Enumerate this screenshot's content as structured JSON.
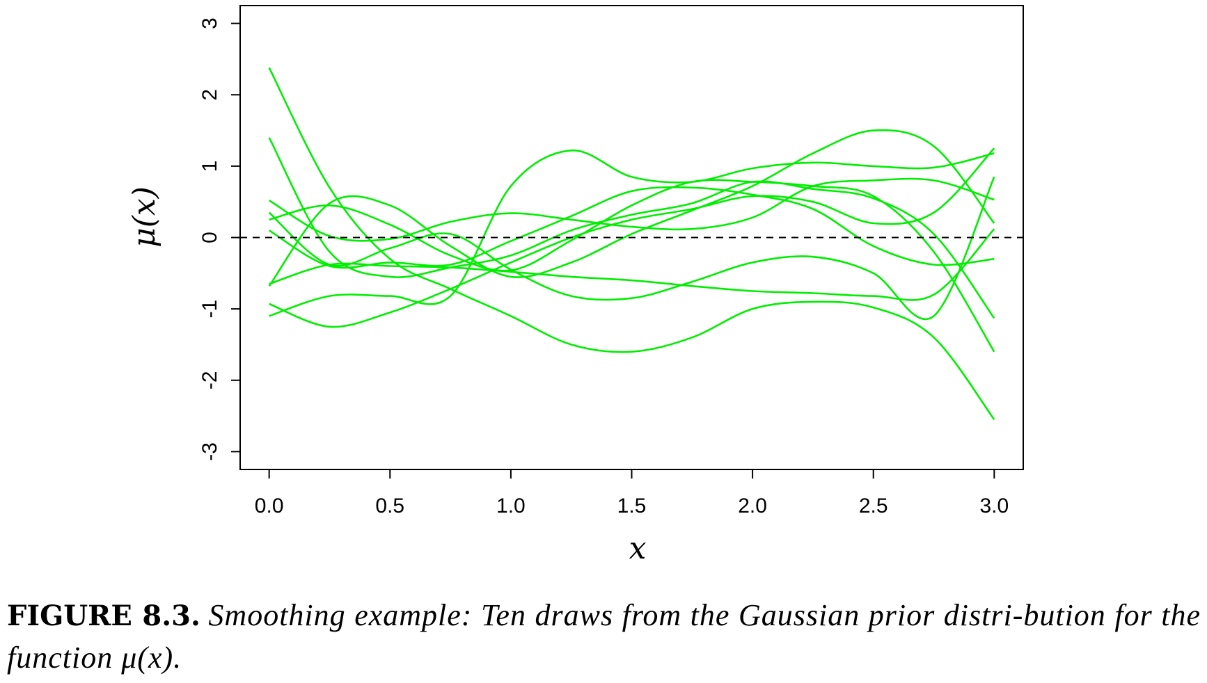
{
  "chart_data": {
    "type": "line",
    "xlabel": "x",
    "ylabel": "μ(x)",
    "xlim": [
      -0.12,
      3.12
    ],
    "ylim": [
      -3.25,
      3.25
    ],
    "x_ticks": [
      "0.0",
      "0.5",
      "1.0",
      "1.5",
      "2.0",
      "2.5",
      "3.0"
    ],
    "x_tick_values": [
      0,
      0.5,
      1,
      1.5,
      2,
      2.5,
      3
    ],
    "y_ticks": [
      "-3",
      "-2",
      "-1",
      "0",
      "1",
      "2",
      "3"
    ],
    "y_tick_values": [
      -3,
      -2,
      -1,
      0,
      1,
      2,
      3
    ],
    "reference_line": {
      "y": 0,
      "style": "dashed",
      "color": "#000000"
    },
    "line_color": "#00ee00",
    "x": [
      0,
      0.25,
      0.5,
      0.75,
      1.0,
      1.25,
      1.5,
      1.75,
      2.0,
      2.25,
      2.5,
      2.75,
      3.0
    ],
    "series": [
      {
        "values": [
          2.38,
          0.7,
          -0.3,
          -0.72,
          -1.1,
          -1.5,
          -1.6,
          -1.4,
          -1.0,
          -0.9,
          -0.98,
          -1.4,
          -2.55
        ]
      },
      {
        "values": [
          1.4,
          -0.2,
          -0.55,
          -0.42,
          -0.25,
          0.1,
          0.32,
          0.48,
          0.78,
          0.68,
          0.55,
          0.05,
          -1.13
        ]
      },
      {
        "values": [
          0.52,
          0.02,
          -0.02,
          0.22,
          0.34,
          0.25,
          0.15,
          0.12,
          0.28,
          0.72,
          0.8,
          0.8,
          0.53
        ]
      },
      {
        "values": [
          0.35,
          -0.38,
          -0.15,
          0.05,
          -0.45,
          -0.82,
          -0.85,
          -0.62,
          -0.35,
          -0.27,
          -0.5,
          -1.1,
          0.85
        ]
      },
      {
        "values": [
          0.25,
          0.45,
          0.18,
          -0.25,
          -0.46,
          -0.04,
          0.45,
          0.78,
          0.78,
          0.72,
          0.58,
          -0.2,
          -1.6
        ]
      },
      {
        "values": [
          0.1,
          -0.4,
          -0.35,
          -0.38,
          -0.05,
          0.3,
          0.65,
          0.7,
          0.6,
          0.4,
          -0.12,
          -0.38,
          -0.3
        ]
      },
      {
        "values": [
          -0.68,
          0.48,
          0.45,
          -0.12,
          -0.55,
          -0.35,
          0.05,
          0.38,
          0.72,
          1.18,
          1.5,
          1.28,
          0.2
        ]
      },
      {
        "values": [
          -0.65,
          -0.38,
          -0.4,
          -0.42,
          -0.48,
          -0.55,
          -0.6,
          -0.68,
          -0.75,
          -0.78,
          -0.82,
          -0.8,
          0.12
        ]
      },
      {
        "values": [
          -0.93,
          -1.25,
          -1.05,
          -0.72,
          -0.35,
          0.0,
          0.25,
          0.4,
          0.58,
          0.5,
          0.2,
          0.35,
          1.25
        ]
      },
      {
        "values": [
          -1.1,
          -0.82,
          -0.82,
          -0.82,
          0.72,
          1.22,
          0.85,
          0.78,
          0.97,
          1.05,
          1.0,
          0.98,
          1.18
        ]
      }
    ]
  },
  "caption": {
    "figure_number": "FIGURE 8.3.",
    "text": "Smoothing example: Ten draws from the Gaussian prior distri-bution for the function μ(x)."
  }
}
